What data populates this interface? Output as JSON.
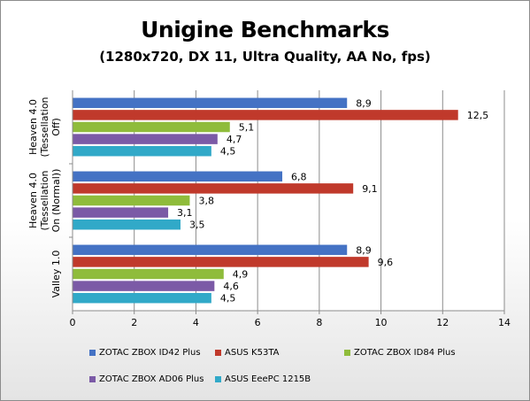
{
  "chart_data": {
    "type": "bar",
    "orientation": "horizontal",
    "title": "Unigine Benchmarks",
    "subtitle": "(1280x720, DX 11, Ultra Quality, AA No, fps)",
    "categories": [
      "Heaven 4.0 (Tessellation Off)",
      "Heaven 4.0 (Tessellation On (Normal))",
      "Valley 1.0"
    ],
    "category_lines": [
      [
        "Heaven 4.0",
        "(Tessellation",
        "Off)"
      ],
      [
        "Heaven 4.0",
        "(Tessellation",
        "On (Normal))"
      ],
      [
        "Valley 1.0"
      ]
    ],
    "series": [
      {
        "name": "ZOTAC ZBOX ID42 Plus",
        "values": [
          8.9,
          6.8,
          8.9
        ],
        "labels": [
          "8,9",
          "6,8",
          "8,9"
        ],
        "color": "#4472c4"
      },
      {
        "name": "ASUS K53TA",
        "values": [
          12.5,
          9.1,
          9.6
        ],
        "labels": [
          "12,5",
          "9,1",
          "9,6"
        ],
        "color": "#c0392b"
      },
      {
        "name": "ZOTAC ZBOX ID84 Plus",
        "values": [
          5.1,
          3.8,
          4.9
        ],
        "labels": [
          "5,1",
          "3,8",
          "4,9"
        ],
        "color": "#8fbc3b"
      },
      {
        "name": "ZOTAC ZBOX AD06 Plus",
        "values": [
          4.7,
          3.1,
          4.6
        ],
        "labels": [
          "4,7",
          "3,1",
          "4,6"
        ],
        "color": "#7b5aa6"
      },
      {
        "name": "ASUS EeePC 1215B",
        "values": [
          4.5,
          3.5,
          4.5
        ],
        "labels": [
          "4,5",
          "3,5",
          "4,5"
        ],
        "color": "#31a9c8"
      }
    ],
    "xlim": [
      0,
      14
    ],
    "x_ticks": [
      0,
      2,
      4,
      6,
      8,
      10,
      12,
      14
    ],
    "x_tick_labels": [
      "0",
      "2",
      "4",
      "6",
      "8",
      "10",
      "12",
      "14"
    ],
    "grid": true,
    "legend_position": "bottom"
  }
}
